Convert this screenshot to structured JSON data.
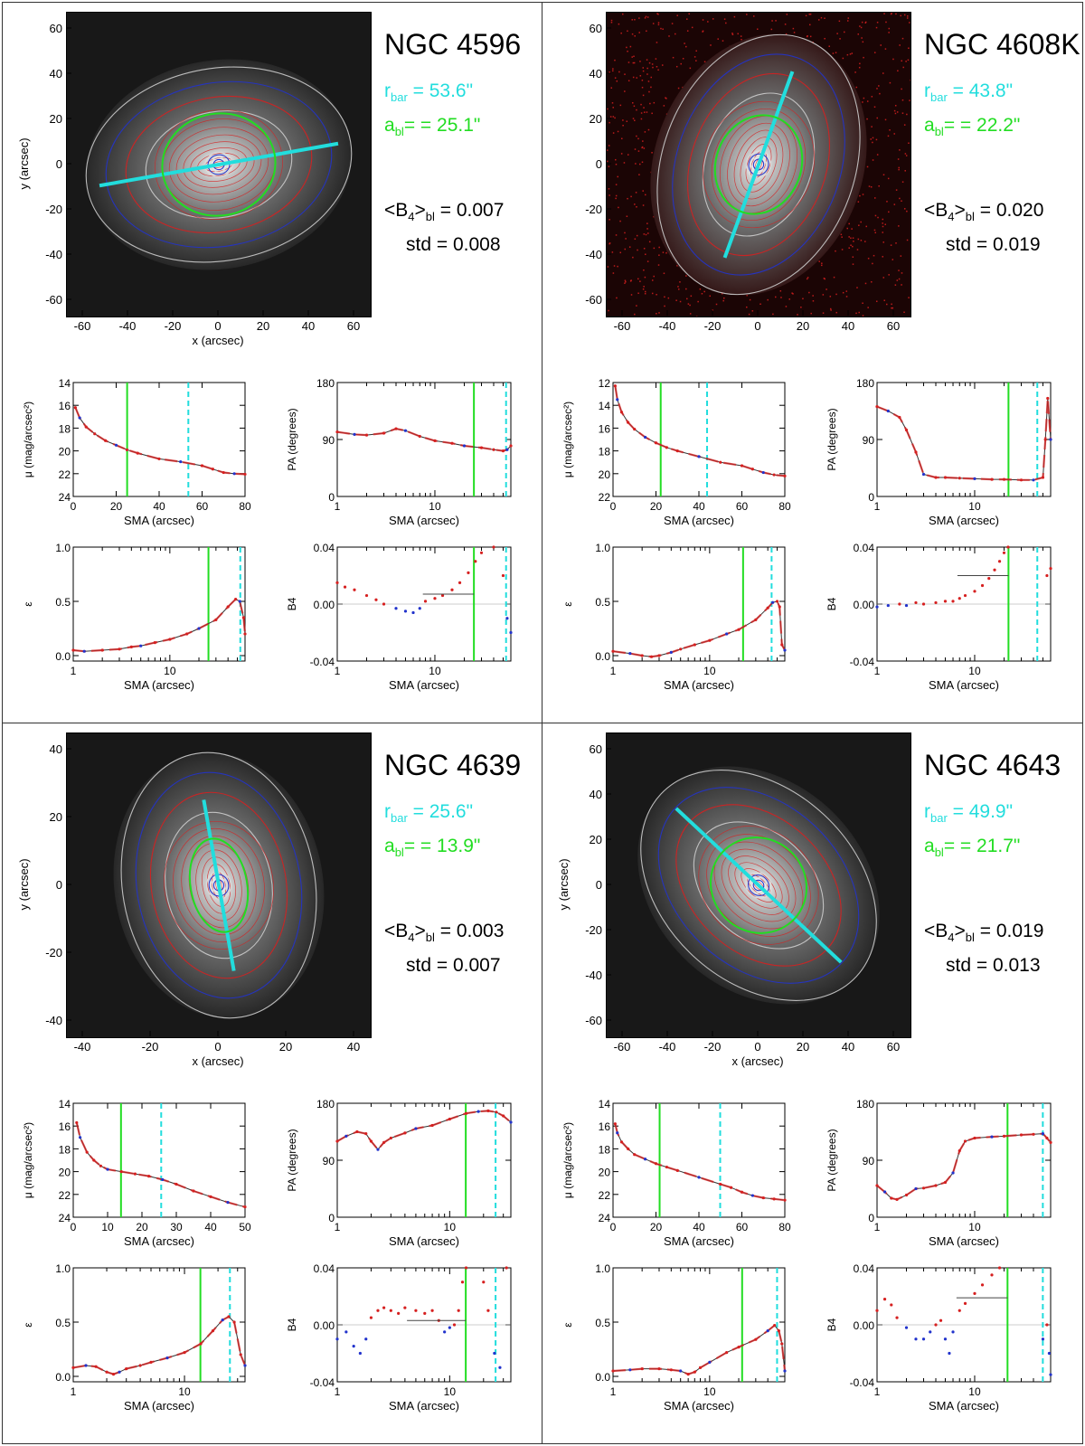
{
  "colors": {
    "cyan": "#22dddd",
    "green": "#22dd22",
    "red": "#d62020",
    "blue": "#2233cc"
  },
  "labels": {
    "r_sym": "r",
    "r_sub": "bar",
    "a_sym": "a",
    "a_sub": "bl",
    "b4avg_pre": "<B",
    "b4avg_sub4": "4",
    "b4avg_mid": ">",
    "b4avg_subbl": "bl",
    "b4avg_eq": " =",
    "std_label": "std ="
  },
  "galaxies": [
    {
      "name": "NGC 4596",
      "r_bar_text": "= 53.6\"",
      "a_bl_text": "= = 25.1\"",
      "b4_text": "0.007",
      "std_text": "0.008",
      "image_xlabel": "x (arcsec)",
      "image_ylabel": "y (arcsec)",
      "image_xticks": [
        "-60",
        "-40",
        "-20",
        "0",
        "20",
        "40",
        "60"
      ],
      "image_yticks": [
        "60",
        "40",
        "20",
        "0",
        "-20",
        "-40",
        "-60"
      ],
      "r_bar": 53.6,
      "a_bl": 25.1,
      "b4_avg": 0.007,
      "bar_pa": 80,
      "ellipse_ratio": 0.9
    },
    {
      "name": "NGC 4608K",
      "r_bar_text": "= 43.8\"",
      "a_bl_text": "= = 22.2\"",
      "b4_text": "0.020",
      "std_text": "0.019",
      "image_xlabel": "",
      "image_ylabel": "",
      "image_xticks": [
        "-60",
        "-40",
        "-20",
        "0",
        "20",
        "40",
        "60"
      ],
      "image_yticks": [
        "60",
        "40",
        "20",
        "0",
        "-20",
        "-40",
        "-60"
      ],
      "r_bar": 43.8,
      "a_bl": 22.2,
      "b4_avg": 0.02,
      "bar_pa": 20,
      "ellipse_ratio": 0.85
    },
    {
      "name": "NGC 4639",
      "r_bar_text": "= 25.6\"",
      "a_bl_text": "= = 13.9\"",
      "b4_text": "0.003",
      "std_text": "0.007",
      "image_xlabel": "x (arcsec)",
      "image_ylabel": "y (arcsec)",
      "image_xticks": [
        "-40",
        "-20",
        "0",
        "20",
        "40"
      ],
      "image_yticks": [
        "40",
        "20",
        "0",
        "-20",
        "-40"
      ],
      "r_bar": 25.6,
      "a_bl": 13.9,
      "b4_avg": 0.003,
      "bar_pa": 170,
      "ellipse_ratio": 0.6
    },
    {
      "name": "NGC 4643",
      "r_bar_text": "= 49.9\"",
      "a_bl_text": "= = 21.7\"",
      "b4_text": "0.019",
      "std_text": "0.013",
      "image_xlabel": "x (arcsec)",
      "image_ylabel": "y (arcsec)",
      "image_xticks": [
        "-60",
        "-40",
        "-20",
        "0",
        "20",
        "40",
        "60"
      ],
      "image_yticks": [
        "60",
        "40",
        "20",
        "0",
        "-20",
        "-40",
        "-60"
      ],
      "r_bar": 49.9,
      "a_bl": 21.7,
      "b4_avg": 0.019,
      "bar_pa": 133,
      "ellipse_ratio": 0.95
    }
  ],
  "chart_data": [
    {
      "panel": "NGC 4596 surface brightness",
      "type": "line",
      "xlabel": "SMA (arcsec)",
      "ylabel": "μ (mag/arcsec²)",
      "xscale": "linear",
      "xlim": [
        0,
        80
      ],
      "ylim": [
        24,
        14
      ],
      "xticks": [
        "0",
        "20",
        "40",
        "60",
        "80"
      ],
      "yticks": [
        "14",
        "16",
        "18",
        "20",
        "22",
        "24"
      ],
      "x": [
        1,
        3,
        6,
        10,
        15,
        20,
        25,
        30,
        40,
        50,
        60,
        65,
        70,
        75,
        80
      ],
      "y": [
        16.2,
        17.1,
        17.9,
        18.5,
        19.1,
        19.5,
        19.9,
        20.2,
        20.7,
        20.95,
        21.3,
        21.6,
        21.9,
        22.0,
        22.05
      ],
      "green_line": 25.1,
      "cyan_line": 53.6
    },
    {
      "panel": "NGC 4596 position angle",
      "type": "line",
      "xlabel": "SMA (arcsec)",
      "ylabel": "PA (degrees)",
      "xscale": "log",
      "xlim": [
        1,
        60
      ],
      "ylim": [
        0,
        180
      ],
      "xticks": [
        "1",
        "10"
      ],
      "xtick_values": [
        1,
        10
      ],
      "yticks": [
        "0",
        "90",
        "180"
      ],
      "x": [
        1,
        1.5,
        2,
        3,
        4,
        5,
        7,
        10,
        15,
        20,
        30,
        40,
        50,
        55,
        60
      ],
      "y": [
        102,
        98,
        97,
        100,
        107,
        104,
        95,
        88,
        84,
        80,
        77,
        74,
        72,
        74,
        80
      ],
      "green_line": 25.1,
      "cyan_line": 53.6
    },
    {
      "panel": "NGC 4596 ellipticity",
      "type": "line",
      "xlabel": "SMA (arcsec)",
      "ylabel": "ε",
      "xscale": "log",
      "xlim": [
        1,
        60
      ],
      "ylim": [
        -0.05,
        1.0
      ],
      "xticks": [
        "1",
        "10"
      ],
      "xtick_values": [
        1,
        10
      ],
      "yticks": [
        "0.0",
        "0.5",
        "1.0"
      ],
      "ytick_values": [
        0,
        0.5,
        1.0
      ],
      "x": [
        1,
        1.3,
        2,
        3,
        4,
        5,
        7,
        10,
        15,
        20,
        30,
        40,
        48,
        53,
        58,
        60
      ],
      "y": [
        0.05,
        0.04,
        0.05,
        0.06,
        0.08,
        0.09,
        0.12,
        0.15,
        0.2,
        0.25,
        0.33,
        0.45,
        0.52,
        0.5,
        0.35,
        0.2
      ],
      "green_line": 25.1,
      "cyan_line": 53.6
    },
    {
      "panel": "NGC 4596 B4",
      "type": "scatter",
      "xlabel": "SMA (arcsec)",
      "ylabel": "B4",
      "xscale": "log",
      "xlim": [
        1,
        60
      ],
      "ylim": [
        -0.04,
        0.04
      ],
      "xticks": [
        "1",
        "10"
      ],
      "xtick_values": [
        1,
        10
      ],
      "yticks": [
        "0.04",
        "0.00",
        "-0.04"
      ],
      "ytick_values": [
        0.04,
        0,
        -0.04
      ],
      "x": [
        1,
        1.2,
        1.5,
        2,
        2.5,
        3,
        4,
        5,
        6,
        7,
        8,
        10,
        12,
        15,
        18,
        22,
        26,
        30,
        40,
        50,
        55,
        60
      ],
      "y": [
        0.015,
        0.012,
        0.01,
        0.006,
        0.003,
        0.0,
        -0.003,
        -0.005,
        -0.006,
        -0.003,
        0.002,
        0.004,
        0.006,
        0.01,
        0.015,
        0.022,
        0.03,
        0.036,
        0.04,
        0.02,
        -0.01,
        -0.02
      ],
      "green_line": 25.1,
      "cyan_line": 53.6,
      "avg_line": 0.007
    },
    {
      "panel": "NGC 4608K surface brightness",
      "type": "line",
      "xlabel": "SMA (arcsec)",
      "ylabel": "μ (mag/arcsec²)",
      "xscale": "linear",
      "xlim": [
        0,
        80
      ],
      "ylim": [
        22,
        12
      ],
      "xticks": [
        "0",
        "20",
        "40",
        "60",
        "80"
      ],
      "yticks": [
        "12",
        "14",
        "16",
        "18",
        "20",
        "22"
      ],
      "x": [
        1,
        2,
        4,
        7,
        10,
        15,
        20,
        25,
        30,
        40,
        50,
        60,
        65,
        70,
        75,
        80
      ],
      "y": [
        12.3,
        13.5,
        14.6,
        15.5,
        16.1,
        16.8,
        17.3,
        17.7,
        18.0,
        18.5,
        19.0,
        19.3,
        19.6,
        19.9,
        20.1,
        20.2
      ],
      "green_line": 22.2,
      "cyan_line": 43.8
    },
    {
      "panel": "NGC 4608K position angle",
      "type": "line",
      "xlabel": "SMA (arcsec)",
      "ylabel": "PA (degrees)",
      "xscale": "log",
      "xlim": [
        1,
        60
      ],
      "ylim": [
        0,
        180
      ],
      "xticks": [
        "1",
        "10"
      ],
      "xtick_values": [
        1,
        10
      ],
      "yticks": [
        "0",
        "90",
        "180"
      ],
      "x": [
        1,
        1.3,
        1.7,
        2,
        2.5,
        3,
        4,
        5,
        7,
        10,
        15,
        20,
        30,
        40,
        50,
        53,
        56,
        60
      ],
      "y": [
        142,
        135,
        125,
        105,
        70,
        35,
        30,
        30,
        29,
        28,
        27,
        27,
        26,
        26,
        30,
        90,
        155,
        90
      ],
      "green_line": 22.2,
      "cyan_line": 43.8
    },
    {
      "panel": "NGC 4608K ellipticity",
      "type": "line",
      "xlabel": "SMA (arcsec)",
      "ylabel": "ε",
      "xscale": "log",
      "xlim": [
        1,
        60
      ],
      "ylim": [
        -0.05,
        1.0
      ],
      "xticks": [
        "1",
        "10"
      ],
      "xtick_values": [
        1,
        10
      ],
      "yticks": [
        "0.0",
        "0.5",
        "1.0"
      ],
      "ytick_values": [
        0,
        0.5,
        1.0
      ],
      "x": [
        1,
        1.5,
        2,
        2.5,
        3,
        4,
        5,
        7,
        10,
        15,
        20,
        30,
        40,
        45,
        50,
        53,
        56,
        60
      ],
      "y": [
        0.04,
        0.02,
        0.0,
        -0.01,
        0.0,
        0.03,
        0.06,
        0.1,
        0.14,
        0.2,
        0.24,
        0.33,
        0.44,
        0.49,
        0.5,
        0.45,
        0.1,
        0.05
      ],
      "green_line": 22.2,
      "cyan_line": 43.8
    },
    {
      "panel": "NGC 4608K B4",
      "type": "scatter",
      "xlabel": "SMA (arcsec)",
      "ylabel": "B4",
      "xscale": "log",
      "xlim": [
        1,
        60
      ],
      "ylim": [
        -0.04,
        0.04
      ],
      "xticks": [
        "1",
        "10"
      ],
      "xtick_values": [
        1,
        10
      ],
      "yticks": [
        "0.04",
        "0.00",
        "-0.04"
      ],
      "ytick_values": [
        0.04,
        0,
        -0.04
      ],
      "x": [
        1,
        1.3,
        1.7,
        2,
        2.5,
        3,
        4,
        5,
        6,
        7,
        8,
        10,
        12,
        14,
        16,
        18,
        20,
        22,
        55,
        60
      ],
      "y": [
        -0.002,
        -0.001,
        0.0,
        -0.001,
        0.001,
        0.0,
        0.001,
        0.002,
        0.002,
        0.004,
        0.006,
        0.009,
        0.013,
        0.018,
        0.024,
        0.03,
        0.036,
        0.04,
        0.02,
        0.025
      ],
      "green_line": 22.2,
      "cyan_line": 43.8,
      "avg_line": 0.02
    },
    {
      "panel": "NGC 4639 surface brightness",
      "type": "line",
      "xlabel": "SMA (arcsec)",
      "ylabel": "μ (mag/arcsec²)",
      "xscale": "linear",
      "xlim": [
        0,
        50
      ],
      "ylim": [
        24,
        14
      ],
      "xticks": [
        "0",
        "10",
        "20",
        "30",
        "40",
        "50"
      ],
      "yticks": [
        "14",
        "16",
        "18",
        "20",
        "22",
        "24"
      ],
      "x": [
        1,
        2,
        4,
        6,
        8,
        10,
        14,
        18,
        22,
        26,
        30,
        35,
        40,
        45,
        50
      ],
      "y": [
        15.7,
        17.0,
        18.3,
        19.0,
        19.5,
        19.8,
        20.0,
        20.2,
        20.4,
        20.7,
        21.1,
        21.7,
        22.2,
        22.7,
        23.1
      ],
      "green_line": 13.9,
      "cyan_line": 25.6
    },
    {
      "panel": "NGC 4639 position angle",
      "type": "line",
      "xlabel": "SMA (arcsec)",
      "ylabel": "PA (degrees)",
      "xscale": "log",
      "xlim": [
        1,
        35
      ],
      "ylim": [
        0,
        180
      ],
      "xticks": [
        "1",
        "10"
      ],
      "xtick_values": [
        1,
        10
      ],
      "yticks": [
        "0",
        "90",
        "180"
      ],
      "x": [
        1,
        1.2,
        1.5,
        1.8,
        2,
        2.3,
        2.6,
        3,
        4,
        5,
        7,
        10,
        14,
        18,
        22,
        26,
        30,
        35
      ],
      "y": [
        120,
        128,
        135,
        132,
        120,
        107,
        118,
        125,
        133,
        140,
        145,
        155,
        164,
        167,
        168,
        166,
        160,
        150
      ],
      "green_line": 13.9,
      "cyan_line": 25.6
    },
    {
      "panel": "NGC 4639 ellipticity",
      "type": "line",
      "xlabel": "SMA (arcsec)",
      "ylabel": "ε",
      "xscale": "log",
      "xlim": [
        1,
        35
      ],
      "ylim": [
        -0.05,
        1.0
      ],
      "xticks": [
        "1",
        "10"
      ],
      "xtick_values": [
        1,
        10
      ],
      "yticks": [
        "0.0",
        "0.5",
        "1.0"
      ],
      "ytick_values": [
        0,
        0.5,
        1.0
      ],
      "x": [
        1,
        1.3,
        1.6,
        2,
        2.3,
        2.6,
        3,
        4,
        5,
        7,
        10,
        14,
        18,
        22,
        25,
        28,
        32,
        35
      ],
      "y": [
        0.08,
        0.1,
        0.09,
        0.04,
        0.02,
        0.04,
        0.07,
        0.1,
        0.13,
        0.17,
        0.22,
        0.3,
        0.42,
        0.52,
        0.55,
        0.5,
        0.2,
        0.1
      ],
      "green_line": 13.9,
      "cyan_line": 25.6
    },
    {
      "panel": "NGC 4639 B4",
      "type": "scatter",
      "xlabel": "SMA (arcsec)",
      "ylabel": "B4",
      "xscale": "log",
      "xlim": [
        1,
        35
      ],
      "ylim": [
        -0.04,
        0.04
      ],
      "xticks": [
        "1",
        "10"
      ],
      "xtick_values": [
        1,
        10
      ],
      "yticks": [
        "0.04",
        "0.00",
        "-0.04"
      ],
      "ytick_values": [
        0.04,
        0,
        -0.04
      ],
      "x": [
        1,
        1.2,
        1.4,
        1.6,
        1.8,
        2,
        2.3,
        2.6,
        3,
        3.5,
        4,
        5,
        6,
        7,
        8,
        9,
        10,
        11,
        12,
        13,
        14,
        20,
        22,
        25,
        28,
        32
      ],
      "y": [
        -0.01,
        -0.005,
        -0.015,
        -0.02,
        -0.01,
        0.005,
        0.01,
        0.012,
        0.01,
        0.008,
        0.012,
        0.01,
        0.008,
        0.01,
        0.003,
        -0.005,
        -0.002,
        0.0,
        0.01,
        0.03,
        0.04,
        0.03,
        0.01,
        -0.02,
        -0.03,
        0.04
      ],
      "green_line": 13.9,
      "cyan_line": 25.6,
      "avg_line": 0.003
    },
    {
      "panel": "NGC 4643 surface brightness",
      "type": "line",
      "xlabel": "SMA (arcsec)",
      "ylabel": "μ (mag/arcsec²)",
      "xscale": "linear",
      "xlim": [
        0,
        80
      ],
      "ylim": [
        24,
        14
      ],
      "xticks": [
        "0",
        "20",
        "40",
        "60",
        "80"
      ],
      "yticks": [
        "14",
        "16",
        "18",
        "20",
        "22",
        "24"
      ],
      "x": [
        1,
        2,
        4,
        7,
        10,
        15,
        20,
        25,
        30,
        40,
        50,
        55,
        60,
        65,
        70,
        75,
        80
      ],
      "y": [
        15.8,
        16.6,
        17.4,
        18.0,
        18.5,
        18.9,
        19.3,
        19.6,
        19.9,
        20.5,
        21.1,
        21.4,
        21.8,
        22.1,
        22.3,
        22.4,
        22.5
      ],
      "green_line": 21.7,
      "cyan_line": 49.9
    },
    {
      "panel": "NGC 4643 position angle",
      "type": "line",
      "xlabel": "SMA (arcsec)",
      "ylabel": "PA (degrees)",
      "xscale": "log",
      "xlim": [
        1,
        60
      ],
      "ylim": [
        0,
        180
      ],
      "xticks": [
        "1",
        "10"
      ],
      "xtick_values": [
        1,
        10
      ],
      "yticks": [
        "0",
        "90",
        "180"
      ],
      "x": [
        1,
        1.2,
        1.4,
        1.6,
        2,
        2.5,
        3,
        4,
        5,
        6,
        7,
        8,
        10,
        15,
        20,
        30,
        40,
        50,
        55,
        60
      ],
      "y": [
        50,
        40,
        30,
        28,
        35,
        45,
        46,
        50,
        55,
        70,
        105,
        120,
        125,
        127,
        128,
        130,
        131,
        132,
        125,
        118
      ],
      "green_line": 21.7,
      "cyan_line": 49.9
    },
    {
      "panel": "NGC 4643 ellipticity",
      "type": "line",
      "xlabel": "SMA (arcsec)",
      "ylabel": "ε",
      "xscale": "log",
      "xlim": [
        1,
        60
      ],
      "ylim": [
        -0.05,
        1.0
      ],
      "xticks": [
        "1",
        "10"
      ],
      "xtick_values": [
        1,
        10
      ],
      "yticks": [
        "0.0",
        "0.5",
        "1.0"
      ],
      "ytick_values": [
        0,
        0.5,
        1.0
      ],
      "x": [
        1,
        1.5,
        2,
        3,
        4,
        5,
        6,
        7,
        8,
        10,
        15,
        20,
        30,
        40,
        47,
        52,
        56,
        60
      ],
      "y": [
        0.05,
        0.06,
        0.07,
        0.07,
        0.06,
        0.05,
        0.02,
        0.04,
        0.08,
        0.13,
        0.22,
        0.27,
        0.34,
        0.42,
        0.47,
        0.42,
        0.3,
        0.05
      ],
      "green_line": 21.7,
      "cyan_line": 49.9
    },
    {
      "panel": "NGC 4643 B4",
      "type": "scatter",
      "xlabel": "SMA (arcsec)",
      "ylabel": "B4",
      "xscale": "log",
      "xlim": [
        1,
        60
      ],
      "ylim": [
        -0.04,
        0.04
      ],
      "xticks": [
        "1",
        "10"
      ],
      "xtick_values": [
        1,
        10
      ],
      "yticks": [
        "0.04",
        "0.00",
        "-0.04"
      ],
      "ytick_values": [
        0.04,
        0,
        -0.04
      ],
      "x": [
        1,
        1.2,
        1.4,
        1.6,
        2,
        2.5,
        3,
        3.5,
        4,
        4.5,
        5,
        5.5,
        6,
        7,
        8,
        10,
        12,
        15,
        18,
        20,
        50,
        55,
        58,
        60
      ],
      "y": [
        0.01,
        0.018,
        0.014,
        0.005,
        -0.002,
        -0.01,
        -0.01,
        -0.005,
        0.0,
        0.003,
        -0.01,
        -0.02,
        -0.005,
        0.01,
        0.015,
        0.022,
        0.028,
        0.035,
        0.04,
        0.042,
        -0.01,
        0.0,
        -0.02,
        -0.035
      ],
      "green_line": 21.7,
      "cyan_line": 49.9,
      "avg_line": 0.019
    }
  ]
}
